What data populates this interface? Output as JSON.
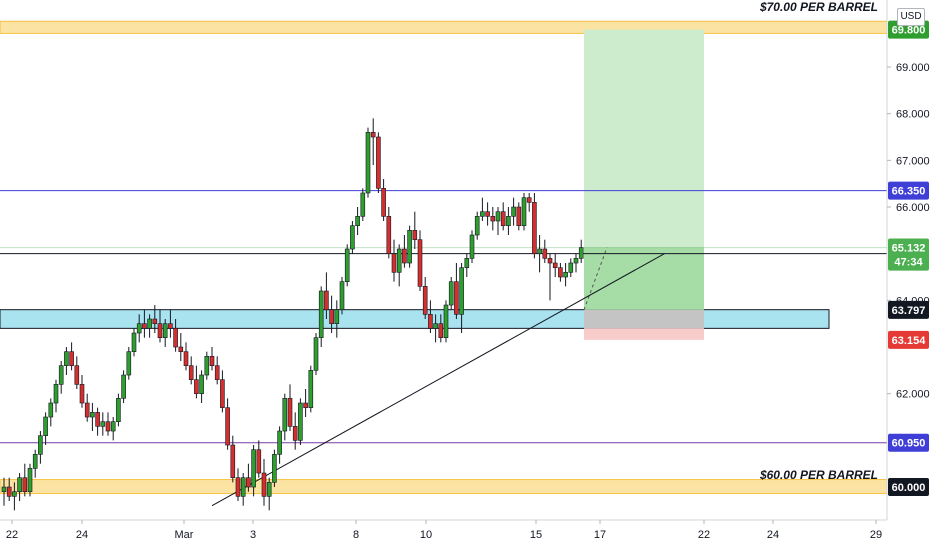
{
  "currency": "USD",
  "annotations": {
    "upper_zone_label": "$70.00 PER BARREL",
    "lower_zone_label": "$60.00 PER BARREL"
  },
  "colors": {
    "up": "#26a69a",
    "up_body": "#2e9e2e",
    "down": "#d32f2f",
    "zone_yellow": "#fbe3a3",
    "zone_yellow_border": "#f5c242",
    "zone_cyan": "#a9e3ef",
    "target_green": "#cdeccd",
    "profit_green": "#a6dca6",
    "stop_red": "#f9cccc",
    "entry_gray": "#c4c4c4",
    "line_blue": "#3f3fd8",
    "line_purple": "#7a3aa8",
    "line_black": "#131722"
  },
  "chart_data": {
    "type": "candlestick",
    "ylim": [
      59.4,
      70.3
    ],
    "y_ticks": [
      "62.000",
      "64.000",
      "66.000",
      "67.000",
      "68.000",
      "69.000"
    ],
    "x_ticks": [
      "22",
      "24",
      "Mar",
      "3",
      "8",
      "10",
      "15",
      "17",
      "22",
      "24",
      "29"
    ],
    "price_labels": [
      {
        "label": "69.800",
        "value": 69.8,
        "bg": "#2e9e2e",
        "fg": "#ffffff"
      },
      {
        "label": "66.350",
        "value": 66.35,
        "bg": "#3f3fd8",
        "fg": "#ffffff"
      },
      {
        "label": "65.132",
        "value": 65.132,
        "bg": "#4caf50",
        "fg": "#ffffff"
      },
      {
        "label": "47:34",
        "value": 64.83,
        "bg": "#4caf50",
        "fg": "#ffffff"
      },
      {
        "label": "63.797",
        "value": 63.797,
        "bg": "#131722",
        "fg": "#ffffff"
      },
      {
        "label": "63.154",
        "value": 63.154,
        "bg": "#e53935",
        "fg": "#ffffff"
      },
      {
        "label": "60.950",
        "value": 60.95,
        "bg": "#3f3fd8",
        "fg": "#ffffff"
      },
      {
        "label": "60.000",
        "value": 60.0,
        "bg": "#131722",
        "fg": "#ffffff"
      }
    ],
    "horizontal_lines": [
      {
        "name": "resistance",
        "value": 66.35,
        "color": "#3f3fd8"
      },
      {
        "name": "current-price",
        "value": 65.0,
        "color": "#131722"
      },
      {
        "name": "support",
        "value": 60.95,
        "color": "#7a3aa8"
      }
    ],
    "zones": [
      {
        "name": "70-zone",
        "from": 69.72,
        "to": 69.98,
        "color": "#fbe3a3"
      },
      {
        "name": "60-zone",
        "from": 59.86,
        "to": 60.16,
        "color": "#fbe3a3"
      },
      {
        "name": "demand-zone",
        "from": 63.4,
        "to": 63.8,
        "color": "#a9e3ef"
      }
    ],
    "position": {
      "entry": 63.797,
      "target": 69.8,
      "stop": 63.154,
      "current": 65.132
    },
    "trendline": {
      "from": {
        "x": 40,
        "y": 59.6
      },
      "to": {
        "x": 127,
        "y": 65.0
      }
    },
    "candles": [
      [
        59.9,
        60.2,
        59.6,
        60.0
      ],
      [
        60.0,
        60.2,
        59.7,
        59.8
      ],
      [
        59.8,
        60.1,
        59.5,
        59.9
      ],
      [
        59.9,
        60.3,
        59.7,
        60.2
      ],
      [
        60.2,
        60.5,
        59.8,
        59.9
      ],
      [
        59.9,
        60.5,
        59.8,
        60.4
      ],
      [
        60.4,
        60.8,
        60.2,
        60.7
      ],
      [
        60.7,
        61.2,
        60.5,
        61.1
      ],
      [
        61.1,
        61.6,
        60.9,
        61.5
      ],
      [
        61.5,
        61.9,
        61.3,
        61.8
      ],
      [
        61.8,
        62.3,
        61.6,
        62.2
      ],
      [
        62.2,
        62.7,
        62.0,
        62.6
      ],
      [
        62.6,
        63.0,
        62.4,
        62.9
      ],
      [
        62.9,
        63.1,
        62.5,
        62.6
      ],
      [
        62.6,
        62.8,
        62.1,
        62.2
      ],
      [
        62.2,
        62.4,
        61.7,
        61.8
      ],
      [
        61.8,
        62.0,
        61.4,
        61.5
      ],
      [
        61.5,
        61.8,
        61.2,
        61.6
      ],
      [
        61.6,
        61.7,
        61.1,
        61.3
      ],
      [
        61.3,
        61.6,
        61.1,
        61.4
      ],
      [
        61.4,
        61.6,
        61.1,
        61.2
      ],
      [
        61.2,
        61.5,
        61.0,
        61.4
      ],
      [
        61.4,
        62.0,
        61.3,
        61.9
      ],
      [
        61.9,
        62.5,
        61.8,
        62.4
      ],
      [
        62.4,
        63.0,
        62.3,
        62.9
      ],
      [
        62.9,
        63.4,
        62.8,
        63.3
      ],
      [
        63.3,
        63.7,
        63.1,
        63.5
      ],
      [
        63.5,
        63.8,
        63.2,
        63.4
      ],
      [
        63.4,
        63.7,
        63.2,
        63.6
      ],
      [
        63.6,
        63.9,
        63.3,
        63.5
      ],
      [
        63.5,
        63.8,
        63.1,
        63.2
      ],
      [
        63.2,
        63.6,
        63.0,
        63.5
      ],
      [
        63.5,
        63.8,
        63.2,
        63.4
      ],
      [
        63.4,
        63.6,
        62.9,
        63.0
      ],
      [
        63.0,
        63.3,
        62.7,
        62.9
      ],
      [
        62.9,
        63.1,
        62.5,
        62.6
      ],
      [
        62.6,
        62.8,
        62.2,
        62.3
      ],
      [
        62.3,
        62.6,
        61.9,
        62.0
      ],
      [
        62.0,
        62.5,
        61.8,
        62.4
      ],
      [
        62.4,
        62.9,
        62.3,
        62.8
      ],
      [
        62.8,
        63.0,
        62.5,
        62.6
      ],
      [
        62.6,
        62.8,
        62.2,
        62.3
      ],
      [
        62.3,
        62.5,
        61.6,
        61.7
      ],
      [
        61.7,
        61.9,
        60.8,
        60.9
      ],
      [
        60.9,
        61.1,
        60.1,
        60.2
      ],
      [
        60.2,
        60.4,
        59.7,
        59.8
      ],
      [
        59.8,
        60.3,
        59.6,
        60.2
      ],
      [
        60.2,
        60.5,
        59.9,
        60.0
      ],
      [
        60.0,
        60.9,
        59.8,
        60.8
      ],
      [
        60.8,
        61.0,
        60.2,
        60.3
      ],
      [
        60.3,
        60.6,
        59.6,
        59.8
      ],
      [
        59.8,
        60.2,
        59.5,
        60.1
      ],
      [
        60.1,
        60.8,
        60.0,
        60.7
      ],
      [
        60.7,
        61.3,
        60.5,
        61.2
      ],
      [
        61.2,
        62.0,
        61.0,
        61.9
      ],
      [
        61.9,
        62.2,
        61.2,
        61.3
      ],
      [
        61.3,
        61.6,
        60.8,
        61.0
      ],
      [
        61.0,
        61.9,
        60.9,
        61.8
      ],
      [
        61.8,
        62.1,
        61.5,
        61.7
      ],
      [
        61.7,
        62.6,
        61.6,
        62.5
      ],
      [
        62.5,
        63.3,
        62.4,
        63.2
      ],
      [
        63.2,
        64.3,
        63.0,
        64.2
      ],
      [
        64.2,
        64.6,
        63.6,
        63.8
      ],
      [
        63.8,
        64.1,
        63.3,
        63.5
      ],
      [
        63.5,
        64.0,
        63.2,
        63.8
      ],
      [
        63.8,
        64.5,
        63.7,
        64.4
      ],
      [
        64.4,
        65.2,
        64.3,
        65.1
      ],
      [
        65.1,
        65.7,
        65.0,
        65.6
      ],
      [
        65.6,
        66.0,
        65.4,
        65.8
      ],
      [
        65.8,
        66.4,
        65.7,
        66.3
      ],
      [
        66.3,
        67.7,
        66.2,
        67.6
      ],
      [
        67.6,
        67.9,
        66.9,
        67.5
      ],
      [
        67.5,
        67.6,
        66.3,
        66.4
      ],
      [
        66.4,
        66.6,
        65.7,
        65.8
      ],
      [
        65.8,
        66.0,
        64.9,
        65.0
      ],
      [
        65.0,
        65.3,
        64.4,
        64.6
      ],
      [
        64.6,
        65.2,
        64.3,
        65.1
      ],
      [
        65.1,
        65.4,
        64.7,
        64.8
      ],
      [
        64.8,
        65.6,
        64.7,
        65.5
      ],
      [
        65.5,
        65.9,
        65.1,
        65.3
      ],
      [
        65.3,
        65.5,
        64.2,
        64.3
      ],
      [
        64.3,
        64.5,
        63.6,
        63.7
      ],
      [
        63.7,
        64.0,
        63.3,
        63.4
      ],
      [
        63.4,
        63.7,
        63.1,
        63.5
      ],
      [
        63.5,
        63.7,
        63.1,
        63.2
      ],
      [
        63.2,
        64.0,
        63.1,
        63.9
      ],
      [
        63.9,
        64.5,
        63.8,
        64.4
      ],
      [
        64.4,
        64.8,
        63.6,
        63.7
      ],
      [
        63.7,
        64.8,
        63.3,
        64.7
      ],
      [
        64.7,
        65.0,
        64.5,
        64.9
      ],
      [
        64.9,
        65.5,
        64.8,
        65.4
      ],
      [
        65.4,
        65.9,
        65.3,
        65.8
      ],
      [
        65.8,
        66.2,
        65.7,
        65.9
      ],
      [
        65.9,
        66.1,
        65.6,
        65.8
      ],
      [
        65.8,
        66.0,
        65.5,
        65.7
      ],
      [
        65.7,
        66.0,
        65.4,
        65.9
      ],
      [
        65.9,
        66.1,
        65.5,
        65.6
      ],
      [
        65.6,
        66.0,
        65.4,
        65.8
      ],
      [
        65.8,
        66.2,
        65.6,
        66.0
      ],
      [
        66.0,
        66.1,
        65.5,
        65.6
      ],
      [
        65.6,
        66.3,
        65.5,
        66.2
      ],
      [
        66.2,
        66.3,
        65.9,
        66.1
      ],
      [
        66.1,
        66.3,
        64.9,
        65.0
      ],
      [
        65.0,
        65.4,
        64.6,
        65.1
      ],
      [
        65.1,
        65.3,
        64.8,
        64.9
      ],
      [
        64.9,
        65.0,
        64.0,
        64.8
      ],
      [
        64.8,
        65.0,
        64.5,
        64.7
      ],
      [
        64.7,
        64.8,
        64.4,
        64.5
      ],
      [
        64.5,
        64.8,
        64.3,
        64.6
      ],
      [
        64.6,
        64.9,
        64.5,
        64.8
      ],
      [
        64.8,
        65.0,
        64.6,
        64.9
      ],
      [
        64.9,
        65.3,
        64.8,
        65.13
      ]
    ]
  }
}
